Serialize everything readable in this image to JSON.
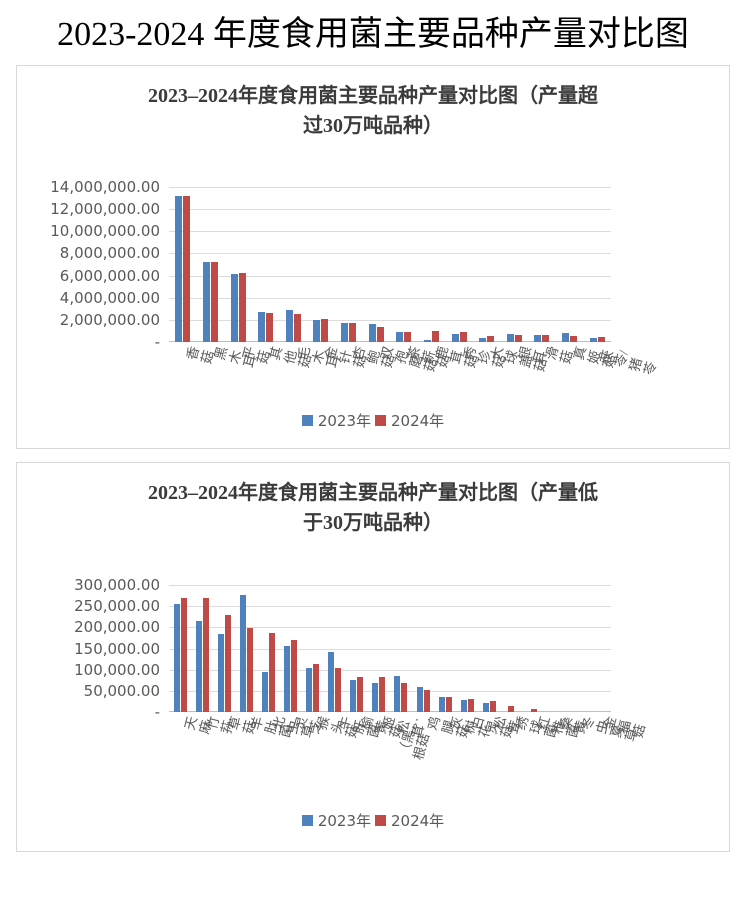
{
  "page_title": "2023-2024 年度食用菌主要品种产量对比图",
  "colors": {
    "series_2023": "#4F81BD",
    "series_2024": "#BE4B48",
    "gridline": "#DCDCDC",
    "axis_line": "#BFBFBF",
    "axis_text": "#595959",
    "card_border": "#D8D8D8",
    "title_text": "#3B3B3B"
  },
  "chart_data": [
    {
      "type": "bar",
      "title": "2023–2024年度食用菌主要品种产量对比图（产量超过30万吨品种）",
      "categories": [
        "香菇",
        "黑木耳",
        "平菇",
        "其他菇",
        "毛木耳",
        "金针菇",
        "杏鲍菇",
        "双孢蘑菇",
        "茶薪菇",
        "鹿茸菇",
        "秀珍菇",
        "大球盖菇",
        "银耳",
        "滑菇",
        "真姬菇",
        "茯苓/猪苓"
      ],
      "series": [
        {
          "name": "2023年",
          "color": "#4F81BD",
          "values": [
            13200000,
            7200000,
            6100000,
            2750000,
            2900000,
            1950000,
            1750000,
            1600000,
            900000,
            200000,
            700000,
            350000,
            700000,
            650000,
            800000,
            380000
          ]
        },
        {
          "name": "2024年",
          "color": "#BE4B48",
          "values": [
            13150000,
            7200000,
            6250000,
            2600000,
            2550000,
            2100000,
            1750000,
            1400000,
            900000,
            950000,
            900000,
            500000,
            620000,
            600000,
            550000,
            430000
          ]
        }
      ],
      "ylim": [
        0,
        14000000
      ],
      "ytick_step": 2000000,
      "ytick_labels": [
        "14,000,000.00",
        "12,000,000.00",
        "10,000,000.00",
        "8,000,000.00",
        "6,000,000.00",
        "4,000,000.00",
        "2,000,000.00",
        "-"
      ],
      "grid": true,
      "legend_position": "bottom"
    },
    {
      "type": "bar",
      "title": "2023–2024年度食用菌主要品种产量对比图（产量低于30万吨品种）",
      "categories": [
        "天麻",
        "竹荪",
        "草菇",
        "羊肚菌",
        "北虫草",
        "灵芝",
        "猴头菇",
        "牛肝菌",
        "榆黄菇",
        "姬松茸",
        "（黑…\n根菇",
        "鸡腿菇",
        "灰树花",
        "白灵菇",
        "松茸",
        "绣球菌",
        "红椎菌",
        "桑黄",
        "冬虫夏草",
        "金福菇"
      ],
      "series": [
        {
          "name": "2023年",
          "color": "#4F81BD",
          "values": [
            255000,
            215000,
            185000,
            277000,
            95000,
            155000,
            103000,
            141000,
            76000,
            68000,
            85000,
            58000,
            35000,
            28000,
            21000,
            0,
            0,
            0,
            0,
            0
          ]
        },
        {
          "name": "2024年",
          "color": "#BE4B48",
          "values": [
            270000,
            270000,
            230000,
            199000,
            186000,
            169000,
            113000,
            104000,
            82000,
            83000,
            69000,
            53000,
            36000,
            31000,
            26000,
            14000,
            8000,
            0,
            0,
            0
          ]
        }
      ],
      "ylim": [
        0,
        300000
      ],
      "ytick_step": 50000,
      "ytick_labels": [
        "300,000.00",
        "250,000.00",
        "200,000.00",
        "150,000.00",
        "100,000.00",
        "50,000.00",
        "-"
      ],
      "grid": true,
      "legend_position": "bottom"
    }
  ]
}
